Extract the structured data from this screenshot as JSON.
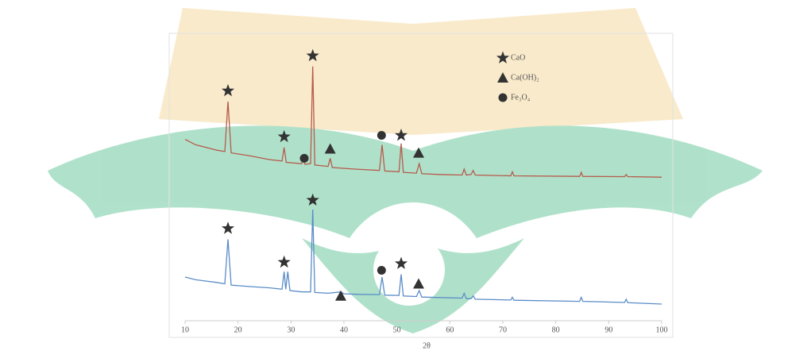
{
  "chart_data": {
    "type": "line",
    "x_label": "2θ",
    "xlim": [
      10,
      100
    ],
    "xticks": [
      10,
      20,
      30,
      40,
      50,
      60,
      70,
      80,
      90,
      100
    ],
    "ylim": [
      0,
      100
    ],
    "legend": [
      {
        "name": "CaO",
        "marker": "star"
      },
      {
        "name": "Ca(OH)₂",
        "marker": "triangle"
      },
      {
        "name": "Fe₃O₄",
        "marker": "circle"
      }
    ],
    "series": [
      {
        "color": "#b65a4c",
        "x": [
          10,
          12,
          14,
          16,
          17.5,
          18.1,
          18.7,
          22,
          26,
          28.3,
          28.7,
          29.1,
          32,
          32.3,
          32.6,
          33.7,
          34.1,
          34.5,
          37,
          37.4,
          37.8,
          42,
          46.7,
          47.2,
          47.7,
          50.4,
          50.8,
          51.2,
          53.7,
          54.2,
          54.7,
          58,
          62.3,
          62.7,
          63.1,
          64,
          64.4,
          64.8,
          71.5,
          71.8,
          72.1,
          84.5,
          84.8,
          85.1,
          93,
          93.3,
          93.6,
          100
        ],
        "values": [
          66,
          64,
          63,
          62,
          61.5,
          80,
          61,
          60,
          58.5,
          58,
          63,
          57.5,
          57,
          59,
          56.8,
          57,
          93,
          56.5,
          56,
          59,
          55.6,
          55,
          54.5,
          64,
          54.3,
          54,
          64.5,
          53.8,
          53.5,
          57,
          53.3,
          53,
          52.8,
          55,
          52.8,
          53,
          54.5,
          52.8,
          52.5,
          54,
          52.5,
          52.3,
          53.8,
          52.3,
          52.2,
          53,
          52.2,
          52
        ],
        "annotations": [
          {
            "x": 18.1,
            "y": 84,
            "marker": "star"
          },
          {
            "x": 28.7,
            "y": 67,
            "marker": "star"
          },
          {
            "x": 32.5,
            "y": 59,
            "marker": "circle"
          },
          {
            "x": 34.1,
            "y": 97,
            "marker": "star"
          },
          {
            "x": 37.4,
            "y": 62.5,
            "marker": "triangle"
          },
          {
            "x": 47.1,
            "y": 67.5,
            "marker": "circle"
          },
          {
            "x": 50.8,
            "y": 67.5,
            "marker": "star"
          },
          {
            "x": 54.1,
            "y": 61,
            "marker": "triangle"
          }
        ]
      },
      {
        "color": "#5a8cc8",
        "x": [
          10,
          12,
          14,
          16,
          17.5,
          18.1,
          18.7,
          22,
          26,
          28.3,
          28.7,
          29,
          29.4,
          29.8,
          32,
          33.7,
          34.1,
          34.5,
          37,
          39.4,
          40,
          43,
          46.7,
          47.2,
          47.7,
          50.4,
          50.8,
          51.2,
          53.7,
          54.2,
          54.7,
          58,
          62.3,
          62.7,
          63.1,
          64,
          64.4,
          64.8,
          71.5,
          71.8,
          72.1,
          84.5,
          84.8,
          85.1,
          93,
          93.3,
          93.6,
          100
        ],
        "values": [
          15,
          14,
          13.5,
          13,
          12.5,
          29,
          12,
          11.5,
          11,
          10.5,
          17,
          10.5,
          17,
          10,
          9.5,
          9.5,
          40,
          9.3,
          9,
          9.5,
          8.8,
          8.6,
          8.5,
          15,
          8.3,
          8.2,
          16,
          8,
          7.8,
          10,
          7.6,
          7.4,
          7.2,
          9,
          7,
          7,
          8,
          6.8,
          6.5,
          7.5,
          6.4,
          6,
          7.5,
          6,
          5.6,
          6.8,
          5.5,
          5
        ],
        "annotations": [
          {
            "x": 18.1,
            "y": 33,
            "marker": "star"
          },
          {
            "x": 28.7,
            "y": 20.5,
            "marker": "star"
          },
          {
            "x": 34.1,
            "y": 43.5,
            "marker": "star"
          },
          {
            "x": 39.4,
            "y": 8,
            "marker": "triangle"
          },
          {
            "x": 47.1,
            "y": 17.5,
            "marker": "circle"
          },
          {
            "x": 50.8,
            "y": 20,
            "marker": "star"
          },
          {
            "x": 54.1,
            "y": 12.5,
            "marker": "triangle"
          }
        ]
      }
    ]
  }
}
